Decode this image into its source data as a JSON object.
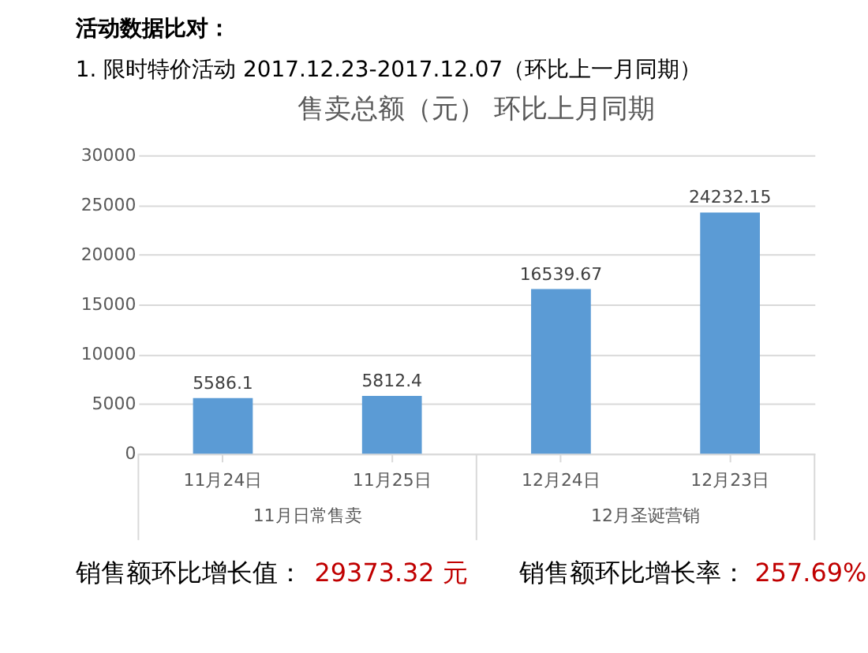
{
  "chart_data": {
    "type": "bar",
    "title": "售卖总额（元）    环比上月同期",
    "categories": [
      "11月24日",
      "11月25日",
      "12月24日",
      "12月23日"
    ],
    "values": [
      5586.1,
      5812.4,
      16539.67,
      24232.15
    ],
    "color": "#5b9bd5",
    "ylim": [
      0,
      30000
    ],
    "yticks": [
      0,
      5000,
      10000,
      15000,
      20000,
      25000,
      30000
    ],
    "grid": "y",
    "data_labels": true,
    "annotations": [
      "活动数据比对：",
      "1.    限时特价活动 2017.12.23-2017.12.07（环比上一月同期）",
      "11月日常售卖",
      "12月圣诞营销",
      "销售额环比增长值：",
      "29373.32 元",
      "销售额环比增长率：",
      "257.69%"
    ]
  }
}
